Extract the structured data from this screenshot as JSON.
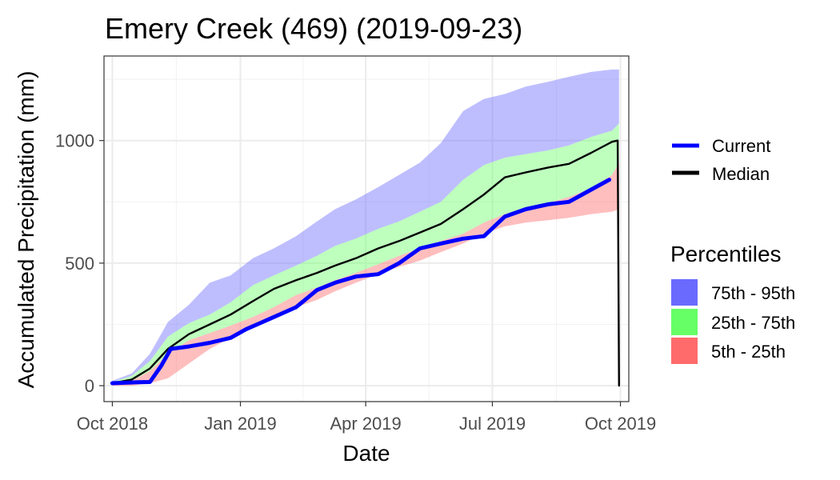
{
  "chart_data": {
    "type": "area",
    "title": "Emery Creek (469) (2019-09-23)",
    "xlabel": "Date",
    "ylabel": "Accumulated Precipitation (mm)",
    "x_range": [
      "2018-09-25",
      "2019-10-07"
    ],
    "ylim": [
      -65,
      1345
    ],
    "grid": true,
    "legend_position": "right",
    "x_ticks": [
      {
        "date": "2018-10-01",
        "label": "Oct 2018"
      },
      {
        "date": "2019-01-01",
        "label": "Jan 2019"
      },
      {
        "date": "2019-04-01",
        "label": "Apr 2019"
      },
      {
        "date": "2019-07-01",
        "label": "Jul 2019"
      },
      {
        "date": "2019-10-01",
        "label": "Oct 2019"
      }
    ],
    "y_ticks": [
      0,
      500,
      1000
    ],
    "colors": {
      "current": "#0000ff",
      "median": "#000000",
      "band_75_95": "#6f6fff",
      "band_25_75": "#6fff6f",
      "band_5_25": "#ff6f6f",
      "legend_75_95": "#6a6aff",
      "legend_25_75": "#66ff66",
      "legend_5_25": "#ff6b6b"
    },
    "x": [
      "2018-10-01",
      "2018-10-15",
      "2018-10-28",
      "2018-11-10",
      "2018-11-25",
      "2018-12-10",
      "2018-12-25",
      "2019-01-10",
      "2019-01-25",
      "2019-02-10",
      "2019-02-25",
      "2019-03-10",
      "2019-03-25",
      "2019-04-10",
      "2019-04-25",
      "2019-05-10",
      "2019-05-25",
      "2019-06-10",
      "2019-06-25",
      "2019-07-10",
      "2019-07-25",
      "2019-08-10",
      "2019-08-25",
      "2019-09-10",
      "2019-09-25",
      "2019-09-30"
    ],
    "bands": {
      "p5": [
        0,
        0,
        10,
        30,
        90,
        150,
        195,
        240,
        280,
        320,
        350,
        385,
        420,
        455,
        485,
        510,
        545,
        580,
        620,
        650,
        665,
        675,
        685,
        700,
        710,
        720
      ],
      "p25": [
        10,
        20,
        60,
        130,
        185,
        215,
        245,
        280,
        320,
        370,
        400,
        430,
        460,
        495,
        530,
        560,
        590,
        620,
        665,
        700,
        725,
        745,
        770,
        805,
        860,
        910
      ],
      "p75": [
        15,
        40,
        100,
        200,
        255,
        290,
        340,
        410,
        450,
        490,
        530,
        570,
        600,
        640,
        670,
        710,
        750,
        840,
        900,
        930,
        945,
        960,
        980,
        1015,
        1040,
        1070
      ],
      "p95": [
        20,
        50,
        130,
        260,
        330,
        420,
        450,
        520,
        560,
        610,
        670,
        720,
        760,
        810,
        860,
        910,
        990,
        1120,
        1170,
        1190,
        1220,
        1240,
        1260,
        1280,
        1290,
        1290
      ]
    },
    "series": [
      {
        "name": "Current",
        "x": [
          "2018-10-01",
          "2018-10-10",
          "2018-10-20",
          "2018-10-28",
          "2018-11-05",
          "2018-11-12",
          "2018-11-25",
          "2018-12-10",
          "2018-12-25",
          "2019-01-05",
          "2019-01-15",
          "2019-01-25",
          "2019-02-10",
          "2019-02-25",
          "2019-03-10",
          "2019-03-25",
          "2019-04-10",
          "2019-04-25",
          "2019-05-10",
          "2019-05-25",
          "2019-06-10",
          "2019-06-25",
          "2019-07-10",
          "2019-07-25",
          "2019-08-10",
          "2019-08-25",
          "2019-09-10",
          "2019-09-23"
        ],
        "values": [
          10,
          12,
          14,
          15,
          80,
          150,
          160,
          175,
          195,
          230,
          255,
          280,
          320,
          390,
          420,
          445,
          455,
          500,
          560,
          580,
          600,
          610,
          690,
          720,
          740,
          750,
          800,
          840
        ]
      },
      {
        "name": "Median",
        "x": [
          "2018-10-01",
          "2018-10-15",
          "2018-10-28",
          "2018-11-10",
          "2018-11-25",
          "2018-12-10",
          "2018-12-25",
          "2019-01-10",
          "2019-01-25",
          "2019-02-10",
          "2019-02-25",
          "2019-03-10",
          "2019-03-25",
          "2019-04-10",
          "2019-04-25",
          "2019-05-10",
          "2019-05-25",
          "2019-06-10",
          "2019-06-25",
          "2019-07-10",
          "2019-07-25",
          "2019-08-10",
          "2019-08-25",
          "2019-09-10",
          "2019-09-25",
          "2019-09-29",
          "2019-09-30"
        ],
        "values": [
          10,
          25,
          70,
          150,
          210,
          250,
          290,
          345,
          395,
          430,
          460,
          490,
          520,
          560,
          590,
          625,
          660,
          720,
          780,
          850,
          870,
          890,
          905,
          950,
          995,
          1000,
          0
        ]
      }
    ],
    "legend": {
      "lines": [
        "Current",
        "Median"
      ],
      "percentiles_title": "Percentiles",
      "percentiles": [
        "75th - 95th",
        "25th - 75th",
        "5th - 25th"
      ]
    }
  }
}
